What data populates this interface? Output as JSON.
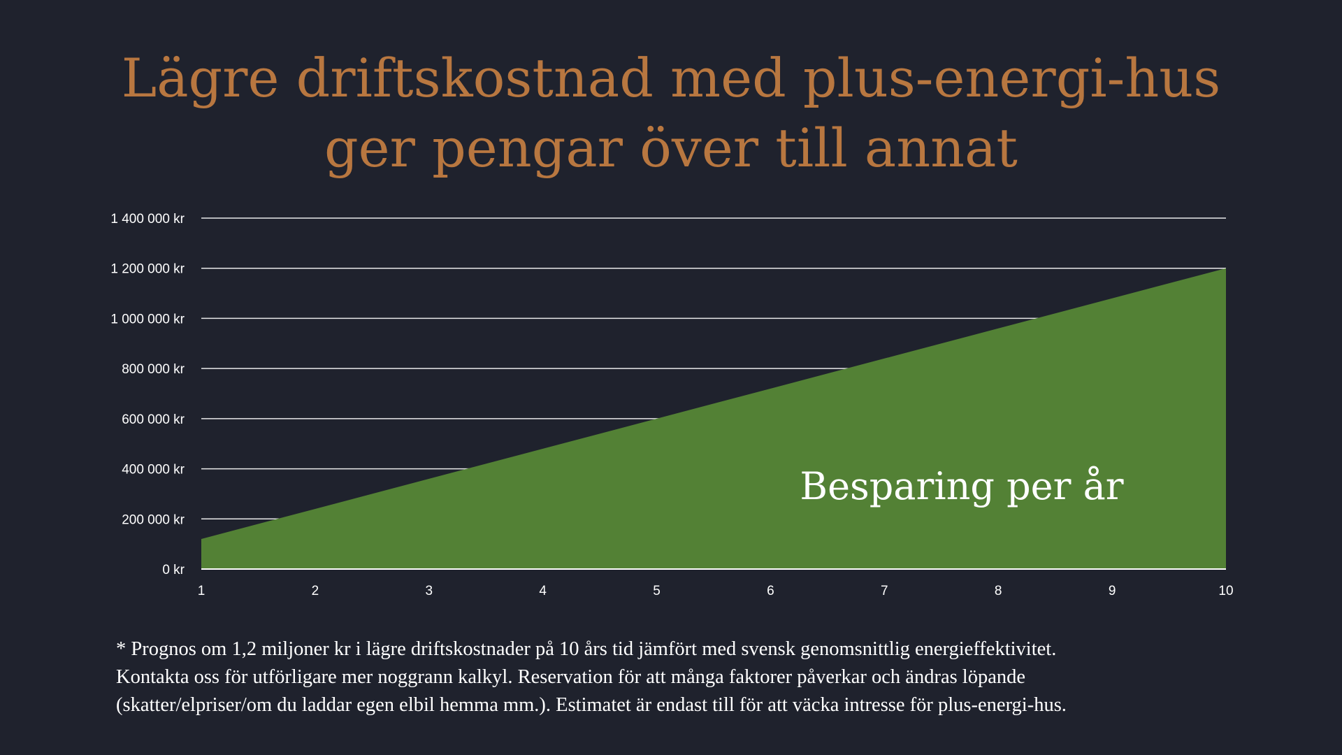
{
  "slide": {
    "title_lines": [
      "Lägre driftskostnad med plus-energi-hus",
      "ger pengar över till annat"
    ],
    "footnote_lines": [
      "* Prognos om 1,2 miljoner kr i lägre driftskostnader på 10 års tid jämfört med svensk genomsnittlig energieffektivitet.",
      "Kontakta oss för utförligare mer noggrann kalkyl. Reservation för att många faktorer påverkar och ändras löpande",
      "(skatter/elpriser/om du laddar egen elbil hemma mm.). Estimatet är endast till för att väcka intresse för plus-energi-hus."
    ]
  },
  "colors": {
    "background": "#1f222d",
    "title": "#b87740",
    "area_fill": "#538135",
    "gridline": "#ffffff",
    "text": "#ffffff"
  },
  "chart_data": {
    "type": "area",
    "x": [
      1,
      2,
      3,
      4,
      5,
      6,
      7,
      8,
      9,
      10
    ],
    "series": [
      {
        "name": "Besparing per år",
        "values": [
          120000,
          240000,
          360000,
          480000,
          600000,
          720000,
          840000,
          960000,
          1080000,
          1200000
        ]
      }
    ],
    "ylim": [
      0,
      1400000
    ],
    "yticks": [
      0,
      200000,
      400000,
      600000,
      800000,
      1000000,
      1200000,
      1400000
    ],
    "ytick_labels": [
      "0 kr",
      "200 000 kr",
      "400 000 kr",
      "600 000 kr",
      "800 000 kr",
      "1 000 000 kr",
      "1 200 000 kr",
      "1 400 000 kr"
    ],
    "xtick_labels": [
      "1",
      "2",
      "3",
      "4",
      "5",
      "6",
      "7",
      "8",
      "9",
      "10"
    ],
    "series_label": "Besparing per år",
    "grid": true,
    "title": "",
    "xlabel": "",
    "ylabel": ""
  }
}
